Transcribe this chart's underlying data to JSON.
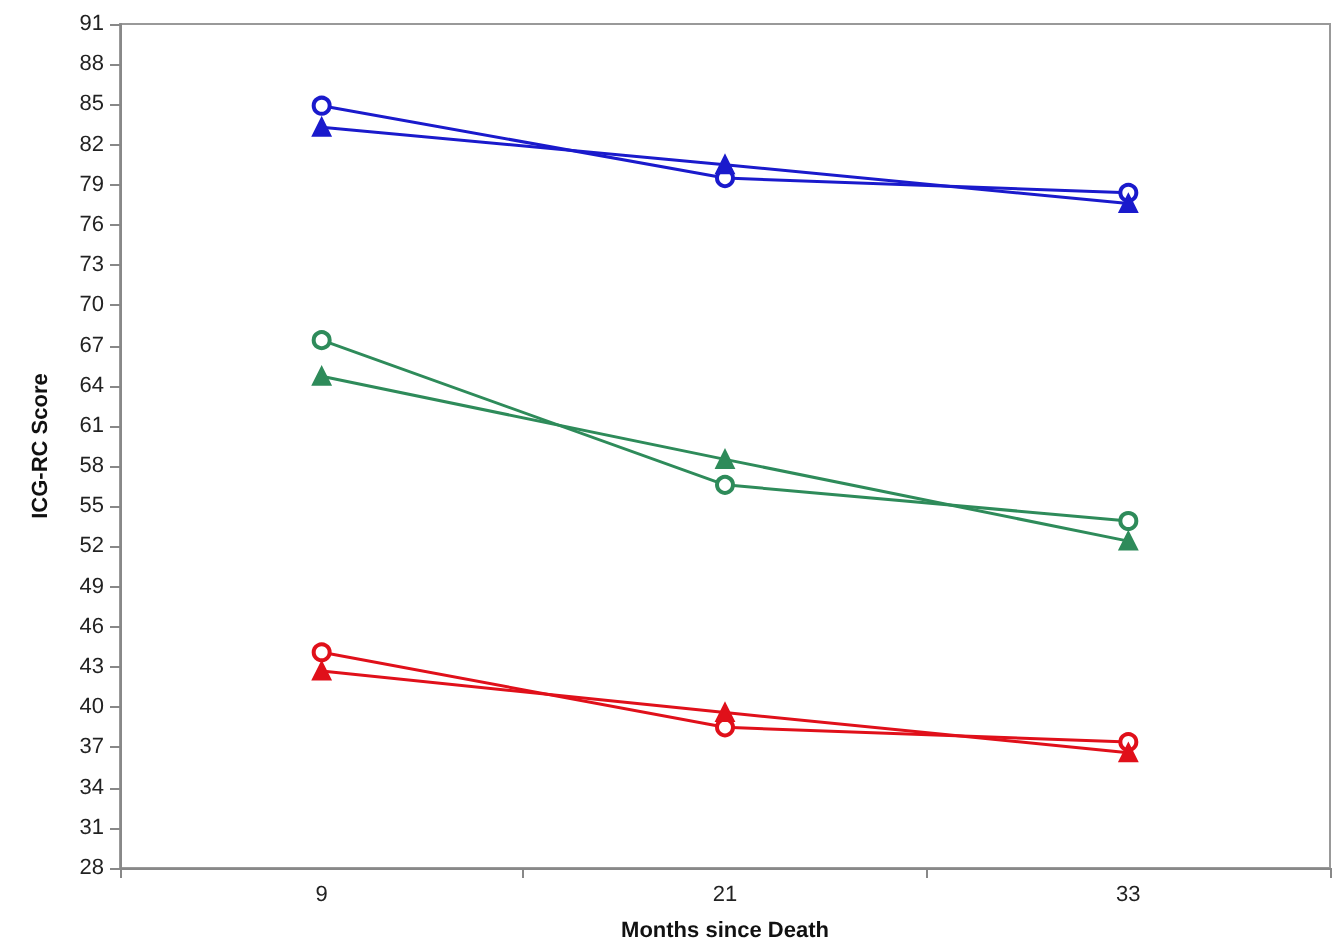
{
  "chart_data": {
    "type": "line",
    "xlabel": "Months since Death",
    "ylabel": "ICG-RC Score",
    "categories": [
      "9",
      "21",
      "33"
    ],
    "series": [
      {
        "color": "#1a1acc",
        "marker": "circle",
        "values": [
          84.9,
          79.5,
          78.4
        ]
      },
      {
        "color": "#1a1acc",
        "marker": "triangle",
        "values": [
          83.3,
          80.5,
          77.6
        ]
      },
      {
        "color": "#2e8b5a",
        "marker": "circle",
        "values": [
          67.4,
          56.6,
          53.9
        ]
      },
      {
        "color": "#2e8b5a",
        "marker": "triangle",
        "values": [
          64.7,
          58.5,
          52.4
        ]
      },
      {
        "color": "#e0101a",
        "marker": "circle",
        "values": [
          44.1,
          38.5,
          37.4
        ]
      },
      {
        "color": "#e0101a",
        "marker": "triangle",
        "values": [
          42.7,
          39.6,
          36.6
        ]
      }
    ],
    "ylim": [
      28,
      91
    ],
    "yticks": [
      28,
      31,
      34,
      37,
      40,
      43,
      46,
      49,
      52,
      55,
      58,
      61,
      64,
      67,
      70,
      73,
      76,
      79,
      82,
      85,
      88,
      91
    ],
    "grid": false,
    "line_style": "solid"
  }
}
